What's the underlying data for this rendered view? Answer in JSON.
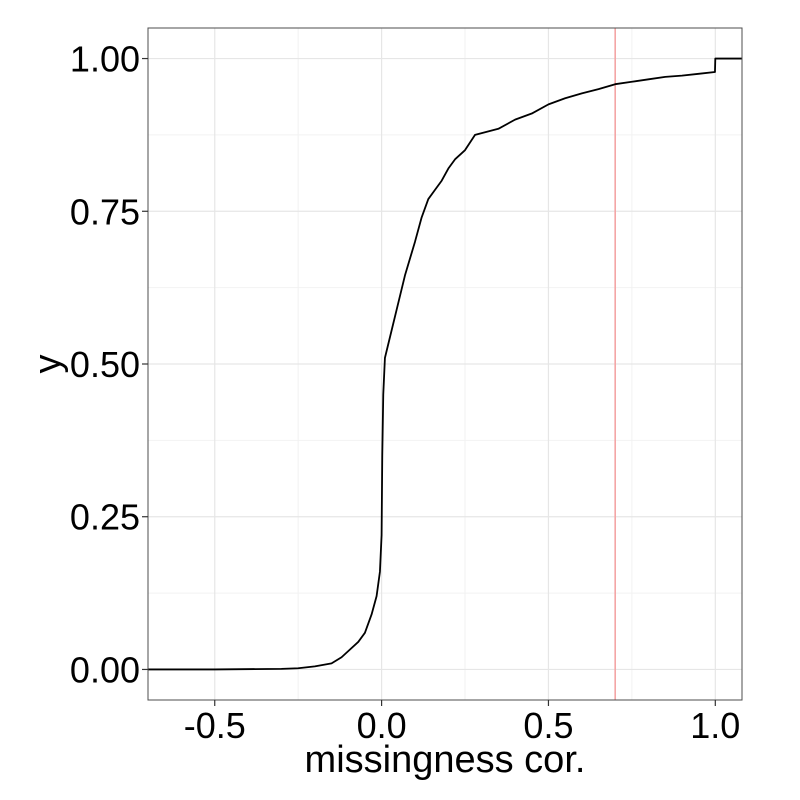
{
  "chart_data": {
    "type": "line",
    "title": "",
    "xlabel": "missingness cor.",
    "ylabel": "y",
    "xlim": [
      -0.7,
      1.08
    ],
    "ylim": [
      -0.05,
      1.05
    ],
    "x_ticks": [
      -0.5,
      0.0,
      0.5,
      1.0
    ],
    "x_tick_labels": [
      "-0.5",
      "0.0",
      "0.5",
      "1.0"
    ],
    "y_ticks": [
      0.0,
      0.25,
      0.5,
      0.75,
      1.0
    ],
    "y_tick_labels": [
      "0.00",
      "0.25",
      "0.50",
      "0.75",
      "1.00"
    ],
    "grid": true,
    "legend": "none",
    "reference_line": {
      "x": 0.7,
      "color": "#f4a6a6"
    },
    "line_color": "#000000",
    "series": [
      {
        "values": [
          [
            -0.7,
            0.0
          ],
          [
            -0.5,
            0.0
          ],
          [
            -0.3,
            0.001
          ],
          [
            -0.25,
            0.002
          ],
          [
            -0.2,
            0.005
          ],
          [
            -0.15,
            0.01
          ],
          [
            -0.12,
            0.02
          ],
          [
            -0.1,
            0.03
          ],
          [
            -0.07,
            0.045
          ],
          [
            -0.05,
            0.06
          ],
          [
            -0.03,
            0.09
          ],
          [
            -0.015,
            0.12
          ],
          [
            -0.005,
            0.16
          ],
          [
            0.0,
            0.22
          ],
          [
            0.002,
            0.35
          ],
          [
            0.005,
            0.45
          ],
          [
            0.01,
            0.51
          ],
          [
            0.03,
            0.555
          ],
          [
            0.05,
            0.6
          ],
          [
            0.07,
            0.645
          ],
          [
            0.1,
            0.7
          ],
          [
            0.12,
            0.74
          ],
          [
            0.14,
            0.77
          ],
          [
            0.16,
            0.785
          ],
          [
            0.18,
            0.8
          ],
          [
            0.2,
            0.82
          ],
          [
            0.22,
            0.835
          ],
          [
            0.25,
            0.85
          ],
          [
            0.28,
            0.875
          ],
          [
            0.3,
            0.878
          ],
          [
            0.35,
            0.885
          ],
          [
            0.4,
            0.9
          ],
          [
            0.45,
            0.91
          ],
          [
            0.5,
            0.925
          ],
          [
            0.55,
            0.935
          ],
          [
            0.6,
            0.943
          ],
          [
            0.65,
            0.95
          ],
          [
            0.7,
            0.958
          ],
          [
            0.75,
            0.962
          ],
          [
            0.8,
            0.966
          ],
          [
            0.85,
            0.97
          ],
          [
            0.9,
            0.972
          ],
          [
            0.95,
            0.975
          ],
          [
            0.999,
            0.978
          ],
          [
            1.0,
            1.0
          ],
          [
            1.08,
            1.0
          ]
        ]
      }
    ]
  }
}
